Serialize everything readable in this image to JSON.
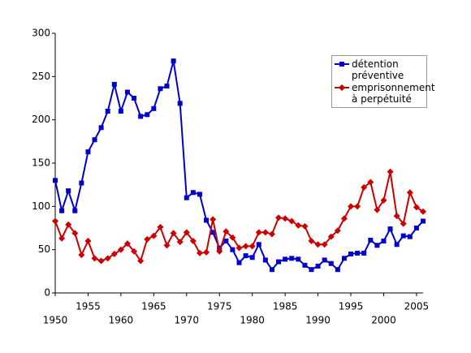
{
  "chart_data": {
    "type": "line",
    "x": [
      1950,
      1951,
      1952,
      1953,
      1954,
      1955,
      1956,
      1957,
      1958,
      1959,
      1960,
      1961,
      1962,
      1963,
      1964,
      1965,
      1966,
      1967,
      1968,
      1969,
      1970,
      1971,
      1972,
      1973,
      1974,
      1975,
      1976,
      1977,
      1978,
      1979,
      1980,
      1981,
      1982,
      1983,
      1984,
      1985,
      1986,
      1987,
      1988,
      1989,
      1990,
      1991,
      1992,
      1993,
      1994,
      1995,
      1996,
      1997,
      1998,
      1999,
      2000,
      2001,
      2002,
      2003,
      2004,
      2005,
      2006
    ],
    "series": [
      {
        "name": "détention préventive",
        "color": "#0000cc",
        "marker": "square",
        "values": [
          130,
          95,
          118,
          95,
          127,
          163,
          177,
          191,
          210,
          241,
          210,
          232,
          225,
          204,
          206,
          213,
          236,
          239,
          268,
          219,
          110,
          116,
          114,
          84,
          70,
          52,
          60,
          50,
          35,
          43,
          41,
          56,
          38,
          27,
          36,
          39,
          40,
          39,
          32,
          27,
          31,
          38,
          34,
          27,
          40,
          45,
          46,
          46,
          61,
          55,
          60,
          74,
          56,
          66,
          65,
          75,
          83
        ]
      },
      {
        "name": "emprisonnement à perpétuité",
        "color": "#cc0000",
        "marker": "diamond",
        "values": [
          83,
          63,
          79,
          69,
          44,
          60,
          40,
          37,
          40,
          45,
          50,
          57,
          48,
          37,
          62,
          66,
          76,
          55,
          69,
          59,
          70,
          60,
          46,
          47,
          85,
          48,
          71,
          64,
          52,
          54,
          54,
          70,
          70,
          68,
          87,
          86,
          83,
          78,
          77,
          60,
          56,
          56,
          65,
          72,
          86,
          100,
          100,
          122,
          128,
          96,
          107,
          140,
          89,
          80,
          116,
          99,
          94
        ]
      }
    ],
    "xlim": [
      1950,
      2006
    ],
    "xticks": [
      1950,
      1955,
      1960,
      1965,
      1970,
      1975,
      1980,
      1985,
      1990,
      1995,
      2000,
      2005
    ],
    "ylim": [
      0,
      300
    ],
    "yticks": [
      0,
      50,
      100,
      150,
      200,
      250,
      300
    ],
    "grid": false,
    "legend": "upper right"
  }
}
